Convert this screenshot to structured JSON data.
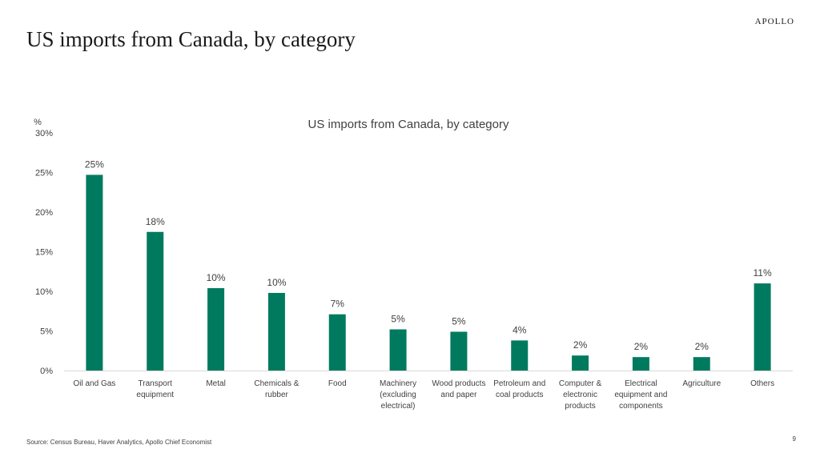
{
  "slide": {
    "title": "US imports from Canada, by category",
    "brand": "APOLLO",
    "source": "Source: Census Bureau, Haver Analytics, Apollo Chief Economist",
    "page_number": "9"
  },
  "colors": {
    "bar": "#007A5E",
    "text": "#404040",
    "axis": "#d9d9d9"
  },
  "chart_data": {
    "type": "bar",
    "title": "US imports from Canada, by category",
    "ylabel": "%",
    "ylim": [
      0,
      30
    ],
    "yticks": [
      0,
      5,
      10,
      15,
      20,
      25,
      30
    ],
    "ytick_labels": [
      "0%",
      "5%",
      "10%",
      "15%",
      "20%",
      "25%",
      "30%"
    ],
    "grid": false,
    "legend": "none",
    "categories": [
      "Oil and Gas",
      "Transport equipment",
      "Metal",
      "Chemicals & rubber",
      "Food",
      "Machinery (excluding electrical)",
      "Wood products and paper",
      "Petroleum and coal products",
      "Computer & electronic products",
      "Electrical equipment and components",
      "Agriculture",
      "Others"
    ],
    "category_lines": [
      [
        "Oil and Gas"
      ],
      [
        "Transport",
        "equipment"
      ],
      [
        "Metal"
      ],
      [
        "Chemicals &",
        "rubber"
      ],
      [
        "Food"
      ],
      [
        "Machinery",
        "(excluding",
        "electrical)"
      ],
      [
        "Wood products",
        "and paper"
      ],
      [
        "Petroleum and",
        "coal products"
      ],
      [
        "Computer &",
        "electronic",
        "products"
      ],
      [
        "Electrical",
        "equipment and",
        "components"
      ],
      [
        "Agriculture"
      ],
      [
        "Others"
      ]
    ],
    "values": [
      24.7,
      17.5,
      10.4,
      9.8,
      7.1,
      5.2,
      4.9,
      3.8,
      1.9,
      1.7,
      1.7,
      11.0
    ],
    "data_labels": [
      "25%",
      "18%",
      "10%",
      "10%",
      "7%",
      "5%",
      "5%",
      "4%",
      "2%",
      "2%",
      "2%",
      "11%"
    ]
  }
}
